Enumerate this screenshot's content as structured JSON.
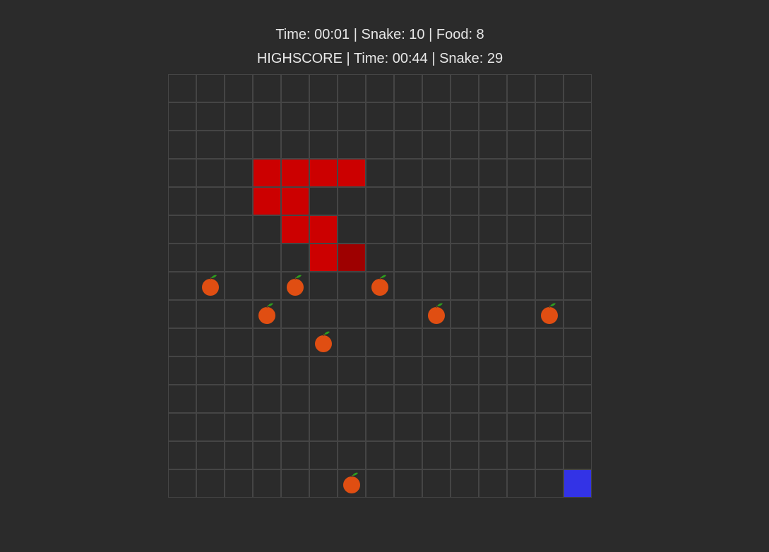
{
  "hud": {
    "current": "Time: 00:01 | Snake: 10 | Food: 8",
    "highscore": "HIGHSCORE | Time: 00:44 | Snake: 29"
  },
  "grid": {
    "cols": 15,
    "rows": 15
  },
  "colors": {
    "background": "#2b2b2b",
    "grid_line": "#454545",
    "snake_body": "#cc0000",
    "snake_head": "#9e0000",
    "player": "#3333e6",
    "food": "#e04e12",
    "food_leaf": "#2e9e1e"
  },
  "snake": {
    "head": [
      6,
      6
    ],
    "body": [
      [
        3,
        3
      ],
      [
        4,
        3
      ],
      [
        5,
        3
      ],
      [
        6,
        3
      ],
      [
        3,
        4
      ],
      [
        4,
        4
      ],
      [
        4,
        5
      ],
      [
        5,
        5
      ],
      [
        5,
        6
      ]
    ]
  },
  "player": [
    14,
    14
  ],
  "food": [
    [
      1,
      7
    ],
    [
      4,
      7
    ],
    [
      7,
      7
    ],
    [
      3,
      8
    ],
    [
      9,
      8
    ],
    [
      13,
      8
    ],
    [
      5,
      9
    ],
    [
      6,
      14
    ]
  ],
  "food_icon": "orange-icon"
}
